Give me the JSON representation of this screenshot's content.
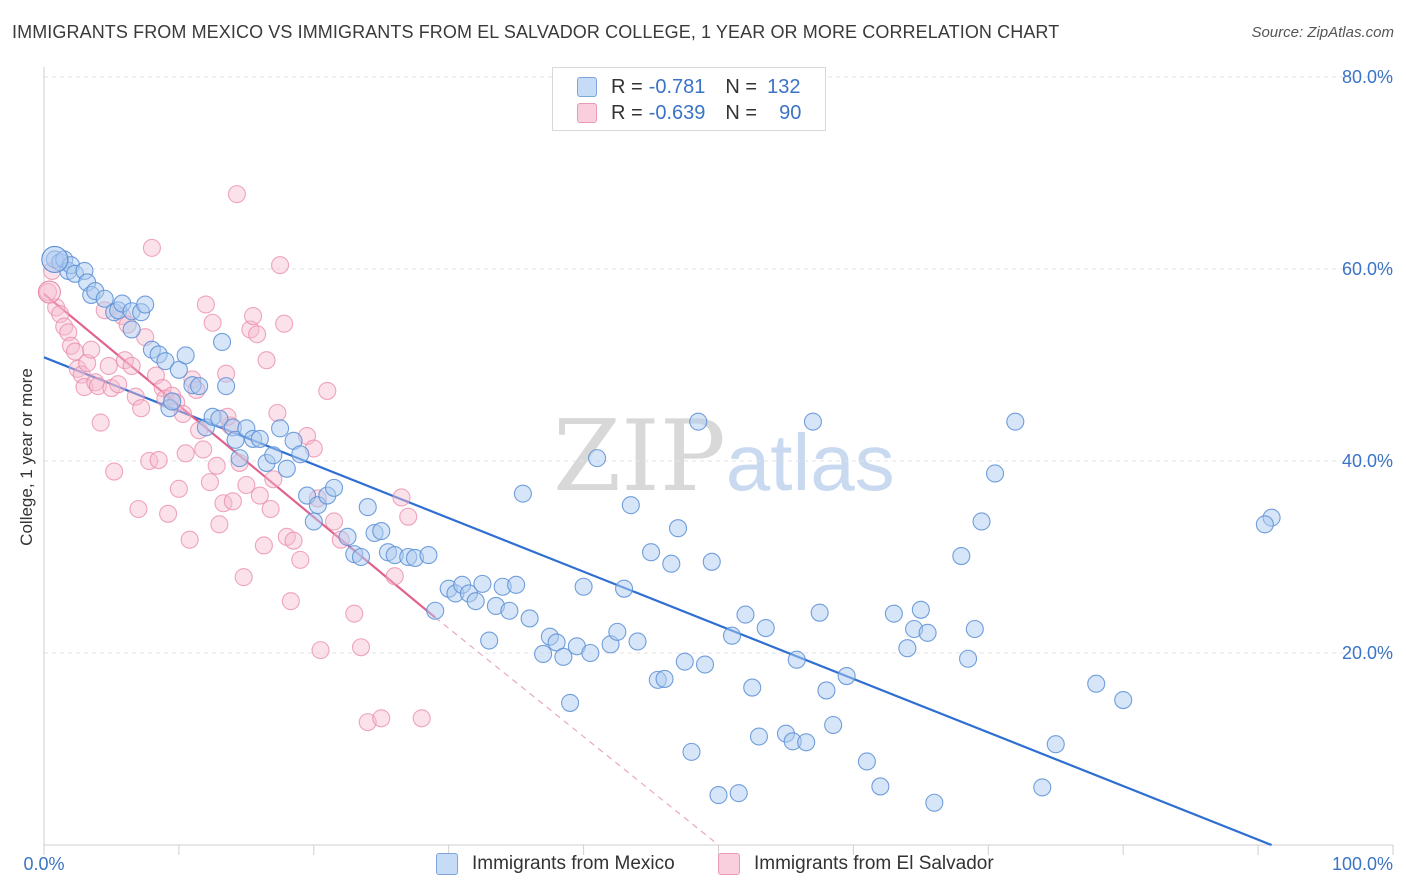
{
  "title": "IMMIGRANTS FROM MEXICO VS IMMIGRANTS FROM EL SALVADOR COLLEGE, 1 YEAR OR MORE CORRELATION CHART",
  "source": "Source: ZipAtlas.com",
  "watermark": {
    "zip": "ZIP",
    "atlas": "atlas"
  },
  "legend": {
    "rows": [
      {
        "r_label": "R =",
        "r_value": "-0.781",
        "n_label": "N =",
        "n_value": "132",
        "color": "#aecbf0"
      },
      {
        "r_label": "R =",
        "r_value": "-0.639",
        "n_label": "N =",
        "n_value": "90",
        "color": "#f6bcd0"
      }
    ]
  },
  "bottom_legend": [
    {
      "label": "Immigrants from Mexico",
      "color": "#aecbf0"
    },
    {
      "label": "Immigrants from El Salvador",
      "color": "#f6bcd0"
    }
  ],
  "chart_data": {
    "type": "scatter",
    "title": "IMMIGRANTS FROM MEXICO VS IMMIGRANTS FROM EL SALVADOR COLLEGE, 1 YEAR OR MORE CORRELATION CHART",
    "xlabel": "",
    "ylabel": "College, 1 year or more",
    "xlim": [
      0,
      100
    ],
    "ylim": [
      0,
      80
    ],
    "x_tick_labels": [
      "0.0%",
      "100.0%"
    ],
    "y_tick_labels": [
      "20.0%",
      "40.0%",
      "60.0%",
      "80.0%"
    ],
    "y_ticks": [
      20,
      40,
      60,
      80
    ],
    "grid": true,
    "colors": {
      "mexico": "#5b8fd6",
      "mexico_fill": "#aecbf0",
      "mexico_line": "#2f6fd1",
      "salvador": "#e98aa8",
      "salvador_fill": "#f6bcd0",
      "salvador_line": "#e0628d"
    },
    "series": [
      {
        "name": "Immigrants from Mexico",
        "trend": {
          "x": [
            0,
            91
          ],
          "y": [
            50.8,
            0
          ]
        },
        "points": [
          [
            0.8,
            61
          ],
          [
            1.2,
            60.7
          ],
          [
            1.5,
            61
          ],
          [
            1.8,
            59.8
          ],
          [
            2,
            60.4
          ],
          [
            2.3,
            59.5
          ],
          [
            3,
            59.8
          ],
          [
            3.2,
            58.6
          ],
          [
            3.5,
            57.3
          ],
          [
            3.8,
            57.7
          ],
          [
            4.5,
            56.9
          ],
          [
            5.2,
            55.5
          ],
          [
            5.5,
            55.7
          ],
          [
            5.8,
            56.4
          ],
          [
            6.5,
            55.6
          ],
          [
            6.5,
            53.7
          ],
          [
            7.2,
            55.5
          ],
          [
            7.5,
            56.3
          ],
          [
            8,
            51.6
          ],
          [
            8.5,
            51.1
          ],
          [
            9,
            50.4
          ],
          [
            9.3,
            45.5
          ],
          [
            9.5,
            46.2
          ],
          [
            10,
            49.5
          ],
          [
            10.5,
            51
          ],
          [
            11,
            47.9
          ],
          [
            11.5,
            47.8
          ],
          [
            12,
            43.5
          ],
          [
            12.5,
            44.6
          ],
          [
            13,
            44.4
          ],
          [
            13.2,
            52.4
          ],
          [
            13.5,
            47.8
          ],
          [
            14,
            43.5
          ],
          [
            14.2,
            42.2
          ],
          [
            14.5,
            40.3
          ],
          [
            15,
            43.4
          ],
          [
            15.5,
            42.3
          ],
          [
            16,
            42.3
          ],
          [
            16.5,
            39.8
          ],
          [
            17,
            40.6
          ],
          [
            17.5,
            43.4
          ],
          [
            18,
            39.2
          ],
          [
            18.5,
            42.1
          ],
          [
            19,
            40.7
          ],
          [
            19.5,
            36.4
          ],
          [
            20,
            33.7
          ],
          [
            20.3,
            35.4
          ],
          [
            21,
            36.4
          ],
          [
            21.5,
            37.2
          ],
          [
            22.5,
            32.1
          ],
          [
            23,
            30.3
          ],
          [
            23.5,
            30
          ],
          [
            24,
            35.2
          ],
          [
            24.5,
            32.5
          ],
          [
            25,
            32.7
          ],
          [
            25.5,
            30.5
          ],
          [
            26,
            30.2
          ],
          [
            27,
            30
          ],
          [
            27.5,
            29.9
          ],
          [
            28.5,
            30.2
          ],
          [
            29,
            24.4
          ],
          [
            30,
            26.7
          ],
          [
            30.5,
            26.2
          ],
          [
            31,
            27.1
          ],
          [
            31.5,
            26.2
          ],
          [
            32,
            25.4
          ],
          [
            32.5,
            27.2
          ],
          [
            33,
            21.3
          ],
          [
            33.5,
            24.9
          ],
          [
            34,
            26.9
          ],
          [
            35,
            27.1
          ],
          [
            34.5,
            24.4
          ],
          [
            35.5,
            36.6
          ],
          [
            36,
            23.6
          ],
          [
            37,
            19.9
          ],
          [
            37.5,
            21.7
          ],
          [
            38,
            21.1
          ],
          [
            38.5,
            19.6
          ],
          [
            39,
            14.8
          ],
          [
            39.5,
            20.7
          ],
          [
            40,
            26.9
          ],
          [
            40.5,
            20
          ],
          [
            41,
            40.3
          ],
          [
            42,
            20.9
          ],
          [
            42.5,
            22.2
          ],
          [
            43,
            26.7
          ],
          [
            43.5,
            35.4
          ],
          [
            44,
            21.2
          ],
          [
            45,
            30.5
          ],
          [
            45.5,
            17.2
          ],
          [
            46,
            17.3
          ],
          [
            46.5,
            29.3
          ],
          [
            47,
            33
          ],
          [
            47.5,
            19.1
          ],
          [
            48,
            9.7
          ],
          [
            48.5,
            44.1
          ],
          [
            49,
            18.8
          ],
          [
            49.5,
            29.5
          ],
          [
            50,
            5.2
          ],
          [
            51,
            21.8
          ],
          [
            51.5,
            5.4
          ],
          [
            52,
            24
          ],
          [
            52.5,
            16.4
          ],
          [
            53,
            11.3
          ],
          [
            53.5,
            22.6
          ],
          [
            55,
            11.6
          ],
          [
            55.5,
            10.8
          ],
          [
            55.8,
            19.3
          ],
          [
            56.5,
            10.7
          ],
          [
            57,
            44.1
          ],
          [
            57.5,
            24.2
          ],
          [
            58,
            16.1
          ],
          [
            58.5,
            12.5
          ],
          [
            59.5,
            17.6
          ],
          [
            61,
            8.7
          ],
          [
            62,
            6.1
          ],
          [
            63,
            24.1
          ],
          [
            64,
            20.5
          ],
          [
            64.5,
            22.5
          ],
          [
            65,
            24.5
          ],
          [
            65.5,
            22.1
          ],
          [
            66,
            4.4
          ],
          [
            68,
            30.1
          ],
          [
            68.5,
            19.4
          ],
          [
            69,
            22.5
          ],
          [
            69.5,
            33.7
          ],
          [
            70.5,
            38.7
          ],
          [
            72,
            44.1
          ],
          [
            74,
            6
          ],
          [
            75,
            10.5
          ],
          [
            78,
            16.8
          ],
          [
            80,
            15.1
          ],
          [
            91,
            34.1
          ],
          [
            90.5,
            33.4
          ]
        ]
      },
      {
        "name": "Immigrants from El Salvador",
        "trend": {
          "x": [
            0,
            29
          ],
          "y": [
            57.4,
            23.7
          ]
        },
        "trend_extension": {
          "x": [
            29,
            50
          ],
          "y": [
            23.7,
            0
          ]
        },
        "points": [
          [
            0.3,
            57.6
          ],
          [
            0.6,
            59.8
          ],
          [
            0.9,
            56
          ],
          [
            1.2,
            55.3
          ],
          [
            1.5,
            54
          ],
          [
            1.8,
            53.4
          ],
          [
            2,
            52
          ],
          [
            2.3,
            51.4
          ],
          [
            2.5,
            49.6
          ],
          [
            2.8,
            49
          ],
          [
            3,
            47.7
          ],
          [
            3.2,
            50.2
          ],
          [
            3.5,
            51.6
          ],
          [
            3.8,
            48.2
          ],
          [
            4,
            47.8
          ],
          [
            4.2,
            44
          ],
          [
            4.5,
            55.7
          ],
          [
            4.8,
            49.9
          ],
          [
            5,
            47.6
          ],
          [
            5.2,
            38.9
          ],
          [
            5.5,
            48
          ],
          [
            5.8,
            55.1
          ],
          [
            6,
            50.5
          ],
          [
            6.2,
            54.2
          ],
          [
            6.5,
            49.9
          ],
          [
            6.8,
            46.7
          ],
          [
            7,
            35
          ],
          [
            7.2,
            45.5
          ],
          [
            7.5,
            52.9
          ],
          [
            7.8,
            40
          ],
          [
            8,
            62.2
          ],
          [
            8.3,
            48.9
          ],
          [
            8.5,
            40.1
          ],
          [
            8.8,
            47.6
          ],
          [
            9,
            46.5
          ],
          [
            9.2,
            34.5
          ],
          [
            9.5,
            46.8
          ],
          [
            9.8,
            46.1
          ],
          [
            10,
            37.1
          ],
          [
            10.3,
            44.9
          ],
          [
            10.5,
            40.8
          ],
          [
            10.8,
            31.8
          ],
          [
            11,
            48.5
          ],
          [
            11.3,
            47.4
          ],
          [
            11.5,
            43.2
          ],
          [
            11.8,
            41.2
          ],
          [
            12,
            56.3
          ],
          [
            12.3,
            37.8
          ],
          [
            12.5,
            54.4
          ],
          [
            12.8,
            39.5
          ],
          [
            13,
            33.4
          ],
          [
            13.3,
            35.6
          ],
          [
            13.5,
            49.1
          ],
          [
            13.8,
            43.7
          ],
          [
            14,
            35.8
          ],
          [
            14.3,
            67.8
          ],
          [
            14.5,
            39.8
          ],
          [
            14.8,
            27.9
          ],
          [
            15,
            37.5
          ],
          [
            15.3,
            53.7
          ],
          [
            15.5,
            55.1
          ],
          [
            15.8,
            53.2
          ],
          [
            16,
            36.4
          ],
          [
            16.3,
            31.2
          ],
          [
            16.5,
            50.5
          ],
          [
            16.8,
            35
          ],
          [
            17,
            38.1
          ],
          [
            17.3,
            45
          ],
          [
            17.5,
            60.4
          ],
          [
            17.8,
            54.3
          ],
          [
            18,
            32.1
          ],
          [
            18.3,
            25.4
          ],
          [
            18.5,
            31.7
          ],
          [
            19,
            29.7
          ],
          [
            19.5,
            42.6
          ],
          [
            20,
            41.3
          ],
          [
            20.3,
            36.1
          ],
          [
            20.5,
            20.3
          ],
          [
            21,
            47.3
          ],
          [
            21.5,
            33.7
          ],
          [
            22,
            31.8
          ],
          [
            23,
            24.1
          ],
          [
            23.5,
            20.6
          ],
          [
            24,
            12.8
          ],
          [
            25,
            13.2
          ],
          [
            26,
            28
          ],
          [
            26.5,
            36.2
          ],
          [
            27,
            34.2
          ],
          [
            28,
            13.2
          ],
          [
            13.6,
            44.6
          ]
        ]
      }
    ]
  }
}
